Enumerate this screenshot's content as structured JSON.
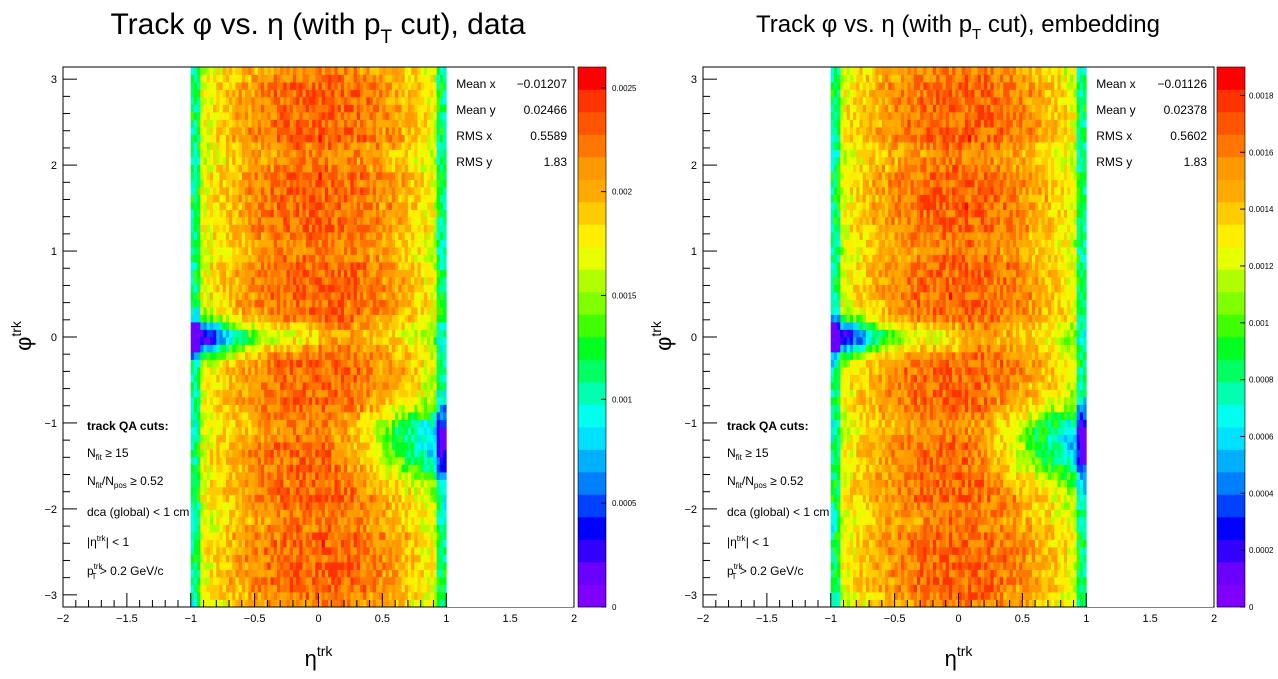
{
  "panels": [
    {
      "title_main": "Track φ vs. η (with p",
      "title_sub": "T",
      "title_tail": " cut), data",
      "title_font": 30,
      "stats": [
        {
          "label": "Mean x",
          "value": "−0.01207"
        },
        {
          "label": "Mean y",
          "value": "0.02466"
        },
        {
          "label": "RMS x",
          "value": "0.5589"
        },
        {
          "label": "RMS y",
          "value": "1.83"
        }
      ],
      "zmax": 0.0026,
      "zticks": [
        "0.0025",
        "0.002",
        "0.0015",
        "0.001",
        "0.0005",
        "0"
      ],
      "ztick_vals": [
        0.0025,
        0.002,
        0.0015,
        0.001,
        0.0005,
        0
      ]
    },
    {
      "title_main": "Track φ vs. η (with p",
      "title_sub": "T",
      "title_tail": " cut), embedding",
      "title_font": 24,
      "stats": [
        {
          "label": "Mean x",
          "value": "−0.01126"
        },
        {
          "label": "Mean y",
          "value": "0.02378"
        },
        {
          "label": "RMS x",
          "value": "0.5602"
        },
        {
          "label": "RMS y",
          "value": "1.83"
        }
      ],
      "zmax": 0.0019,
      "zticks": [
        "0.0018",
        "0.0016",
        "0.0014",
        "0.0012",
        "0.001",
        "0.0008",
        "0.0006",
        "0.0004",
        "0.0002",
        "0"
      ],
      "ztick_vals": [
        0.0018,
        0.0016,
        0.0014,
        0.0012,
        0.001,
        0.0008,
        0.0006,
        0.0004,
        0.0002,
        0
      ]
    }
  ],
  "xaxis": {
    "title": "η",
    "title_sup": "trk",
    "ticks": [
      "−2",
      "−1.5",
      "−1",
      "−0.5",
      "0",
      "0.5",
      "1",
      "1.5",
      "2"
    ],
    "tick_vals": [
      -2,
      -1.5,
      -1,
      -0.5,
      0,
      0.5,
      1,
      1.5,
      2
    ],
    "range": [
      -2,
      2
    ]
  },
  "yaxis": {
    "title": "φ",
    "title_sup": "trk",
    "ticks": [
      "3",
      "2",
      "1",
      "0",
      "−1",
      "−2",
      "−3"
    ],
    "tick_vals": [
      3,
      2,
      1,
      0,
      -1,
      -2,
      -3
    ],
    "range": [
      -3.1416,
      3.1416
    ]
  },
  "cuts": {
    "heading": "track QA cuts:",
    "line1_main": "N",
    "line1_sub": "fit",
    "line1_tail": " ≥ 15",
    "line2_a": "N",
    "line2_a_sub": "fit",
    "line2_b": "/N",
    "line2_b_sub": "pos",
    "line2_tail": " ≥ 0.52",
    "line3": "dca (global) < 1 cm",
    "line4_a": "|η",
    "line4_sup": "trk",
    "line4_b": "| < 1",
    "line5_a": "p",
    "line5_sup": "trk",
    "line5_sub": "T",
    "line5_tail": " > 0.2 GeV/c"
  },
  "chart_data": [
    {
      "type": "heatmap",
      "title": "Track φ vs. η (with pT cut), data",
      "xlabel": "η^trk",
      "ylabel": "φ^trk",
      "xlim": [
        -2,
        2
      ],
      "ylim": [
        -3.1416,
        3.1416
      ],
      "zlim": [
        0,
        0.0026
      ],
      "filled_x_range": [
        -1,
        1
      ],
      "description_values": {
        "center_density": 0.0026,
        "edge_density": 0.0018,
        "low_region_density": 0.001
      },
      "stats": {
        "Mean x": -0.01207,
        "Mean y": 0.02466,
        "RMS x": 0.5589,
        "RMS y": 1.83
      }
    },
    {
      "type": "heatmap",
      "title": "Track φ vs. η (with pT cut), embedding",
      "xlabel": "η^trk",
      "ylabel": "φ^trk",
      "xlim": [
        -2,
        2
      ],
      "ylim": [
        -3.1416,
        3.1416
      ],
      "zlim": [
        0,
        0.0019
      ],
      "filled_x_range": [
        -1,
        1
      ],
      "description_values": {
        "center_density": 0.0019,
        "edge_density": 0.0013,
        "low_region_density": 0.0007
      },
      "stats": {
        "Mean x": -0.01126,
        "Mean y": 0.02378,
        "RMS x": 0.5602,
        "RMS y": 1.83
      }
    }
  ]
}
